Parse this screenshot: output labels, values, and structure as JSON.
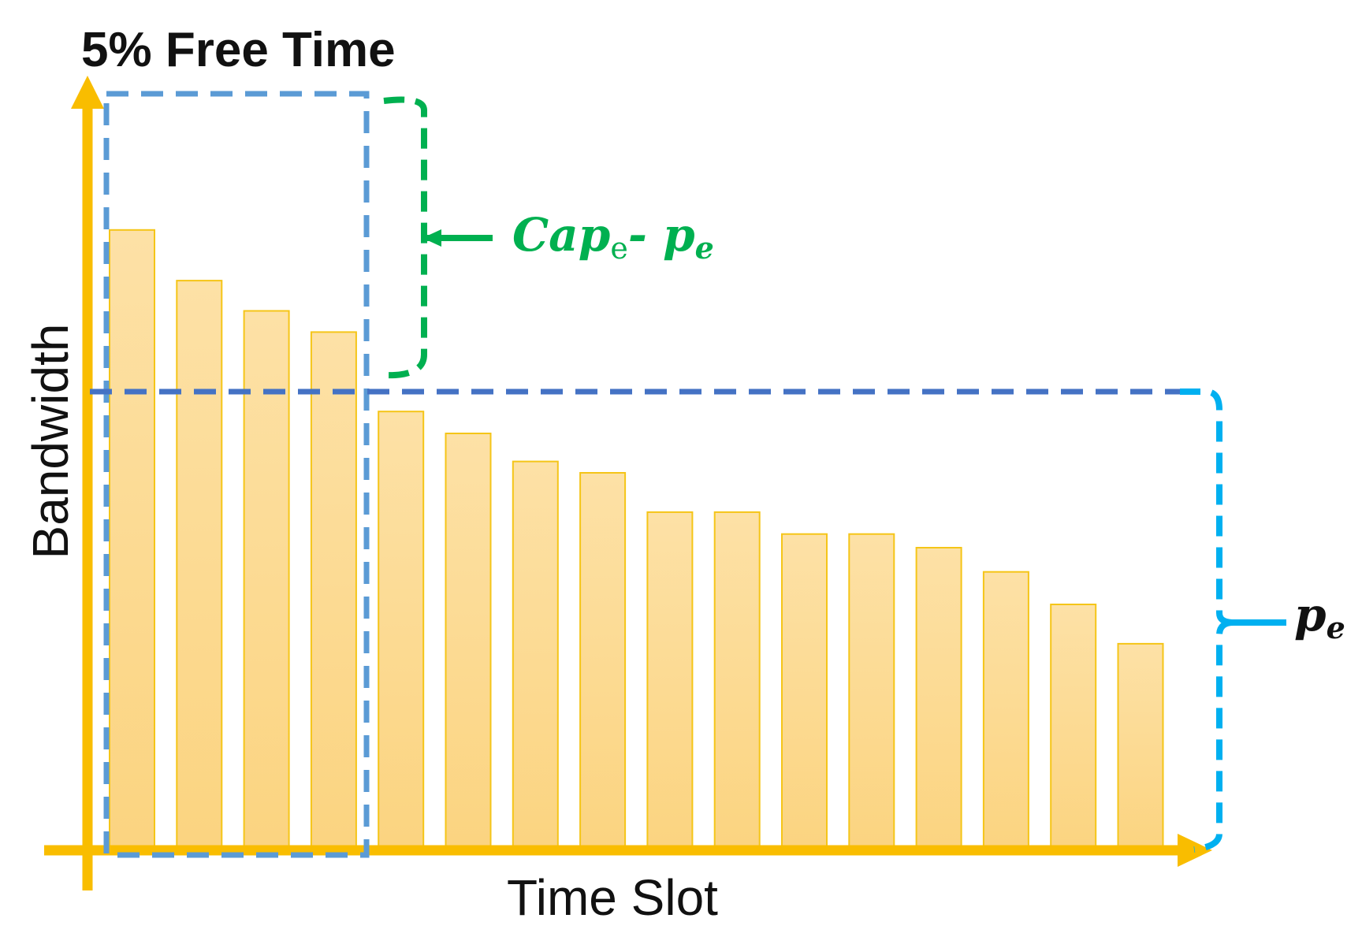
{
  "chart_data": {
    "type": "bar",
    "title": "5% Free Time",
    "xlabel": "Time Slot",
    "ylabel": "Bandwidth",
    "values": [
      82,
      75.3,
      71.3,
      68.5,
      58,
      55.1,
      51.4,
      49.9,
      44.7,
      44.7,
      41.8,
      41.8,
      40,
      36.8,
      32.5,
      27.3
    ],
    "ylim": [
      0,
      100
    ],
    "grid": false,
    "bar_color": "#fbd78c",
    "bar_edge_color": "#f5c518",
    "axis_color": "#f9bd00",
    "threshold": {
      "value": 58,
      "label_base": "p",
      "label_sub": "e",
      "color": "#4472c4"
    },
    "free_time_window": {
      "bars_covered": 4,
      "color": "#5b9bd5"
    },
    "annotations": [
      {
        "id": "cap-minus-p",
        "base": "Cap",
        "sub": "e",
        "separator": "- ",
        "base2": "p",
        "sub2": "e",
        "color": "#00b050"
      },
      {
        "id": "p-e",
        "base": "p",
        "sub": "e",
        "color": "#00b0f0"
      }
    ]
  }
}
